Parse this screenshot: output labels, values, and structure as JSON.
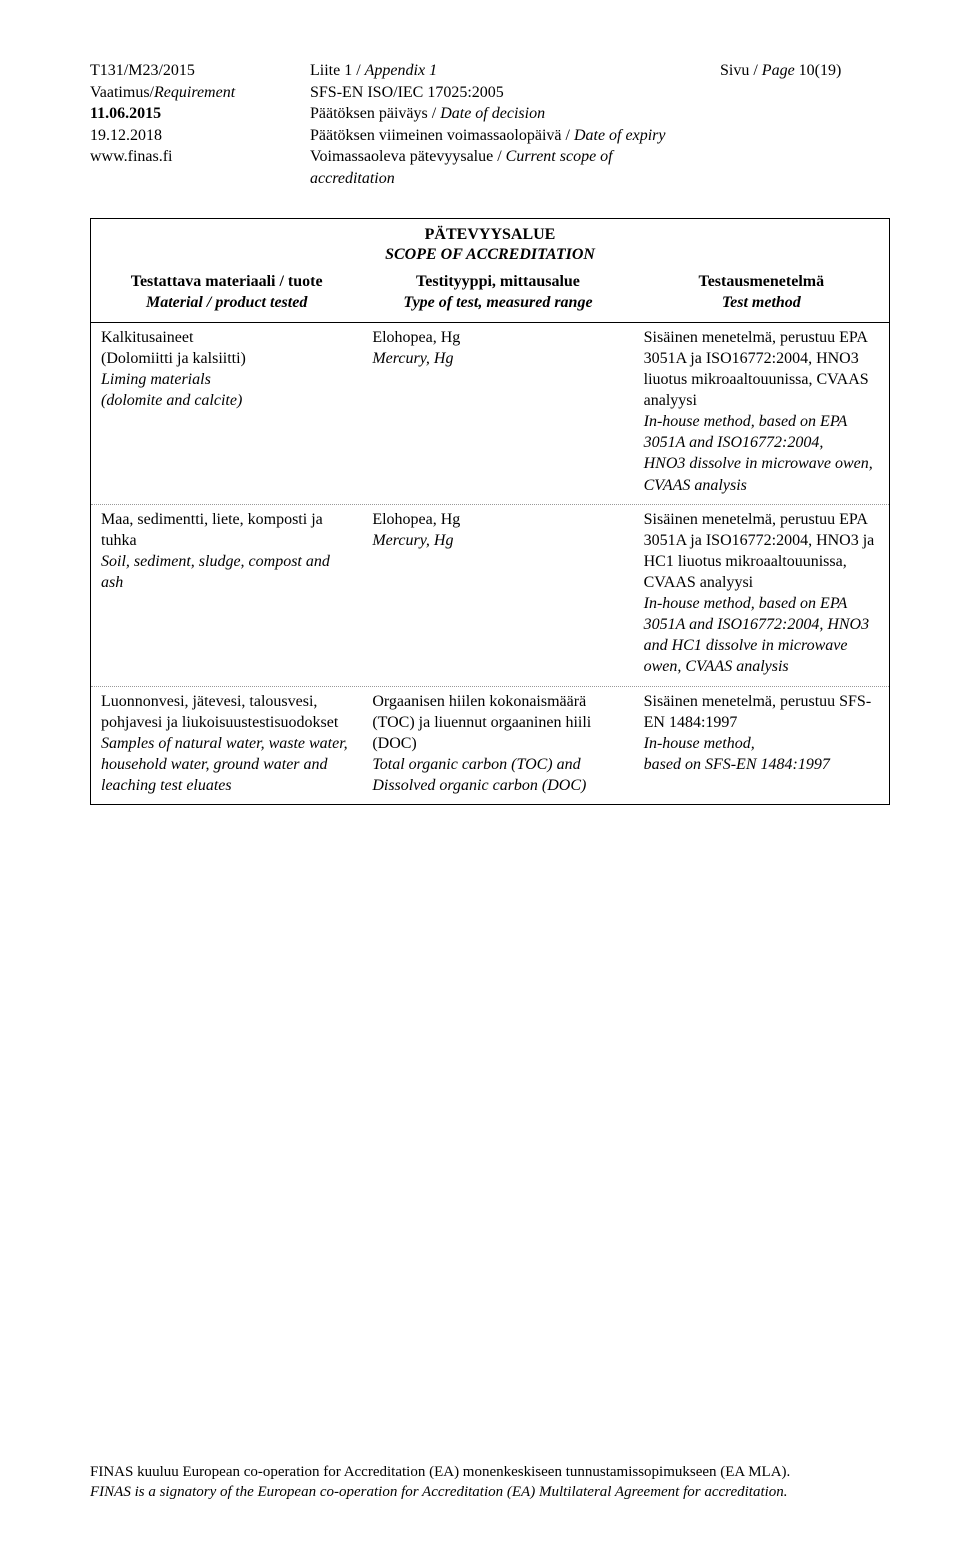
{
  "header": {
    "left": {
      "code": "T131/M23/2015",
      "req_label": "Vaatimus/",
      "req_label_it": "Requirement",
      "date1": "11.06.2015",
      "date2": "19.12.2018",
      "url": "www.finas.fi"
    },
    "mid": {
      "appendix": "Liite 1 / ",
      "appendix_it": "Appendix 1",
      "standard": "SFS-EN ISO/IEC 17025:2005",
      "decision": "Päätöksen päiväys / ",
      "decision_it": "Date of decision",
      "expiry": "Päätöksen viimeinen voimassaolopäivä / ",
      "expiry_it": "Date of expiry",
      "scope": "Voimassaoleva pätevyysalue / ",
      "scope_it": "Current scope of accreditation"
    },
    "right": {
      "page": "Sivu / ",
      "page_it": "Page",
      "page_num": " 10(19)"
    }
  },
  "table": {
    "title1": "PÄTEVYYSALUE",
    "title2": "SCOPE OF ACCREDITATION",
    "head": {
      "c1a": "Testattava materiaali / tuote",
      "c1b": "Material / product tested",
      "c2a": "Testityyppi, mittausalue",
      "c2b": "Type of test, measured range",
      "c3a": "Testausmenetelmä",
      "c3b": "Test method"
    },
    "rows": [
      {
        "c1": "Kalkitusaineet\n(Dolomiitti ja kalsiitti)",
        "c1_it": "Liming materials\n(dolomite and calcite)",
        "c2": "Elohopea, Hg",
        "c2_it": "Mercury, Hg",
        "c3": "Sisäinen menetelmä, perustuu EPA 3051A ja ISO16772:2004, HNO3 liuotus mikroaaltouunissa, CVAAS analyysi",
        "c3_it": "In-house method, based on EPA 3051A and ISO16772:2004,\nHNO3 dissolve in microwave owen, CVAAS analysis"
      },
      {
        "c1": "Maa, sedimentti, liete, komposti ja tuhka",
        "c1_it": "Soil, sediment, sludge, compost and ash",
        "c2": "Elohopea, Hg",
        "c2_it": "Mercury, Hg",
        "c3": "Sisäinen menetelmä, perustuu EPA 3051A ja ISO16772:2004, HNO3 ja HC1 liuotus mikroaaltouunissa, CVAAS analyysi",
        "c3_it": "In-house method, based on EPA 3051A and ISO16772:2004, HNO3 and HC1 dissolve in microwave owen, CVAAS analysis"
      },
      {
        "c1": "Luonnonvesi, jätevesi, talousvesi, pohjavesi ja liukoisuustestisuodokset",
        "c1_it": "Samples of natural water, waste water, household water, ground water and leaching test eluates",
        "c2": "Orgaanisen hiilen kokonaismäärä (TOC) ja liuennut orgaaninen hiili (DOC)",
        "c2_it": "Total organic carbon (TOC) and Dissolved organic carbon (DOC)",
        "c3": "Sisäinen menetelmä, perustuu SFS-EN 1484:1997",
        "c3_it": "In-house method,\nbased on SFS-EN 1484:1997"
      }
    ]
  },
  "footer": {
    "line1": "FINAS kuuluu European co-operation for Accreditation (EA) monenkeskiseen tunnustamissopimukseen (EA MLA).",
    "line2": "FINAS is a signatory of the European co-operation for Accreditation (EA) Multilateral Agreement for accreditation."
  }
}
